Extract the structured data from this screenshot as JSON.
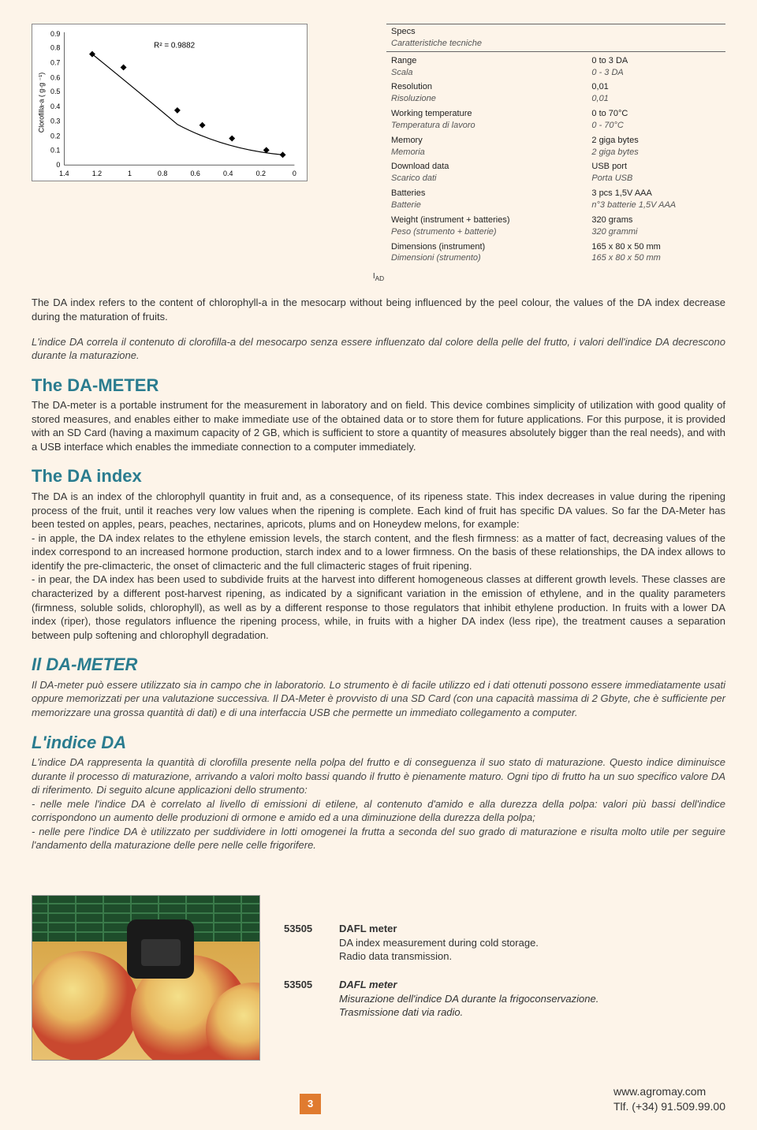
{
  "chart": {
    "r2_label": "R² = 0.9882",
    "ylabel": "Clorofilla-a ( g·g ⁻¹)",
    "xlabel": "I_AD",
    "xlabel_sub": "AD",
    "ylim": [
      0,
      0.9
    ],
    "yticks": [
      0,
      0.1,
      0.2,
      0.3,
      0.4,
      0.5,
      0.6,
      0.7,
      0.8,
      0.9
    ],
    "xlim": [
      0,
      1.4
    ],
    "xticks": [
      0,
      0.2,
      0.4,
      0.6,
      0.8,
      1,
      1.2,
      1.4
    ],
    "x_reversed": true,
    "points_x": [
      1.23,
      1.04,
      0.71,
      0.56,
      0.38,
      0.17,
      0.07
    ],
    "points_y": [
      0.75,
      0.66,
      0.37,
      0.27,
      0.18,
      0.1,
      0.07
    ],
    "marker": "diamond",
    "marker_color": "#000000",
    "line_color": "#000000",
    "background": "#ffffff"
  },
  "specs": {
    "header_en": "Specs",
    "header_it": "Caratteristiche tecniche",
    "rows": [
      {
        "label_en": "Range",
        "label_it": "Scala",
        "val_en": "0 to 3 DA",
        "val_it": "0 - 3 DA"
      },
      {
        "label_en": "Resolution",
        "label_it": "Risoluzione",
        "val_en": "0,01",
        "val_it": "0,01"
      },
      {
        "label_en": "Working temperature",
        "label_it": "Temperatura di lavoro",
        "val_en": "0 to 70°C",
        "val_it": "0 - 70°C"
      },
      {
        "label_en": "Memory",
        "label_it": "Memoria",
        "val_en": "2 giga bytes",
        "val_it": "2 giga bytes"
      },
      {
        "label_en": "Download data",
        "label_it": "Scarico dati",
        "val_en": "USB port",
        "val_it": "Porta USB"
      },
      {
        "label_en": "Batteries",
        "label_it": "Batterie",
        "val_en": "3 pcs 1,5V AAA",
        "val_it": "n°3 batterie 1,5V AAA"
      },
      {
        "label_en": "Weight (instrument + batteries)",
        "label_it": "Peso (strumento + batterie)",
        "val_en": "320 grams",
        "val_it": "320 grammi"
      },
      {
        "label_en": "Dimensions (instrument)",
        "label_it": "Dimensioni (strumento)",
        "val_en": "165 x 80 x 50 mm",
        "val_it": "165 x 80 x 50 mm"
      }
    ]
  },
  "intro_en": "The DA index refers to the content of chlorophyll-a in the mesocarp without being influenced by the peel colour, the values of the DA index decrease during the maturation of fruits.",
  "intro_it": "L'indice DA correla il contenuto di clorofilla-a del mesocarpo senza essere influenzato dal colore della pelle del frutto, i valori dell'indice DA decrescono durante la maturazione.",
  "sections": {
    "dameter_en_title": "The DA-METER",
    "dameter_en_text": "The DA-meter is a portable instrument for the measurement in laboratory and on field. This device combines simplicity of utilization with good quality of stored measures, and enables either to make immediate use of the obtained data or to store them for future applications. For this purpose, it is provided with an SD Card (having a maximum capacity of 2 GB, which is sufficient to store a quantity of measures absolutely bigger than the real needs), and with a USB interface which enables the  immediate connection to a computer immediately.",
    "daindex_en_title": "The DA index",
    "daindex_en_text": "The DA is an index of the chlorophyll quantity in fruit and, as a consequence, of its ripeness state. This index decreases in value during the ripening process of the fruit, until it reaches very low values when the ripening is complete. Each kind of fruit has specific DA values. So far the DA-Meter has been tested on apples, pears, peaches, nectarines, apricots, plums and on Honeydew melons, for example:\n- in apple, the DA index relates to the ethylene emission levels, the starch content, and the flesh firmness: as a matter of fact, decreasing values of the index correspond to an increased hormone production, starch index and to a lower firmness. On the basis of these relationships, the DA index allows to identify the pre-climacteric, the onset of climacteric and the full climacteric stages of fruit ripening.\n- in pear, the DA index has been used to subdivide fruits at the harvest into different homogeneous classes at different growth levels. These classes are characterized by a different post-harvest ripening, as indicated by a significant variation in the emission of ethylene, and in the quality parameters (firmness, soluble solids, chlorophyll), as well as by a different response to those regulators that inhibit ethylene production. In fruits with a lower DA index (riper), those regulators influence the ripening process, while, in fruits with a higher DA index (less ripe), the treatment causes a separation between pulp softening and chlorophyll degradation.",
    "dameter_it_title": "Il DA-METER",
    "dameter_it_text": "Il DA-meter può essere utilizzato sia in campo che in laboratorio. Lo strumento è di facile utilizzo ed i dati ottenuti possono essere immediatamente usati oppure memorizzati per una valutazione successiva. Il DA-Meter è provvisto di una SD Card (con una capacità massima di 2 Gbyte, che è sufficiente per memorizzare una grossa quantità di dati) e di una interfaccia USB che permette un immediato collegamento a computer.",
    "daindex_it_title": "L'indice DA",
    "daindex_it_text": "L'indice DA rappresenta la quantità di clorofilla presente nella polpa del frutto e di conseguenza il suo stato di maturazione. Questo indice diminuisce durante il processo di maturazione, arrivando a valori molto bassi quando il frutto è pienamente maturo. Ogni tipo di frutto ha un suo specifico valore DA di riferimento. Di seguito alcune applicazioni dello strumento:\n- nelle mele l'indice DA è correlato al livello di emissioni di etilene, al contenuto d'amido e alla durezza della polpa: valori più bassi dell'indice corrispondono un aumento delle produzioni di ormone e amido ed a una diminuzione della durezza della polpa;\n- nelle pere l'indice DA è utilizzato per suddividere in lotti omogenei la frutta a seconda del suo grado di maturazione e risulta molto utile per seguire l'andamento della maturazione delle pere nelle celle frigorifere."
  },
  "products": [
    {
      "code": "53505",
      "title_en": "DAFL meter",
      "desc_en1": "DA index measurement during cold storage.",
      "desc_en2": "Radio data transmission."
    },
    {
      "code": "53505",
      "title_it": "DAFL meter",
      "desc_it1": "Misurazione dell'indice DA durante la frigoconservazione.",
      "desc_it2": "Trasmissione dati via radio."
    }
  ],
  "footer": {
    "page": "3",
    "url": "www.agromay.com",
    "phone": "Tlf. (+34) 91.509.99.00"
  },
  "colors": {
    "page_bg": "#fdf4e9",
    "heading": "#2a7c8f",
    "page_num_bg": "#e07b2f"
  }
}
